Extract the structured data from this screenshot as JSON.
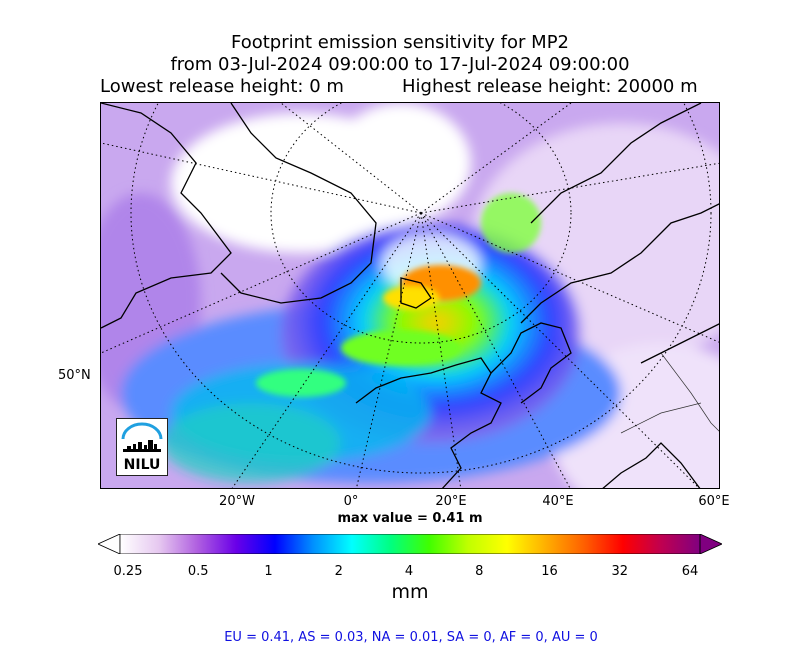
{
  "title": {
    "line1": "Footprint emission sensitivity for MP2",
    "line2": "from 03-Jul-2024 09:00:00 to 17-Jul-2024 09:00:00",
    "lowest": "Lowest release height: 0 m",
    "highest": "Highest release height: 20000 m"
  },
  "map": {
    "projection": "north-polar-stereographic",
    "lat_labels": [
      "50°N"
    ],
    "lon_labels": [
      "20°W",
      "0°",
      "20°E",
      "40°E",
      "60°E"
    ],
    "gridlines": "dotted",
    "logo_text": "NILU",
    "logo_icon": "nilu-logo"
  },
  "max_value": "max value = 0.41 m",
  "colorbar": {
    "ticks": [
      "0.25",
      "0.5",
      "1",
      "2",
      "4",
      "8",
      "16",
      "32",
      "64"
    ],
    "unit": "mm",
    "colors": [
      "#ffffff",
      "#e6c8f0",
      "#b060e0",
      "#6a00e8",
      "#0000ff",
      "#0090ff",
      "#00ffff",
      "#00ff80",
      "#40ff00",
      "#c0ff00",
      "#ffff00",
      "#ffb000",
      "#ff6000",
      "#ff0000",
      "#c00050",
      "#800080"
    ],
    "extend": "both"
  },
  "regions": "EU = 0.41,  AS = 0.03,  NA = 0.01,  SA = 0,  AF = 0,  AU = 0"
}
